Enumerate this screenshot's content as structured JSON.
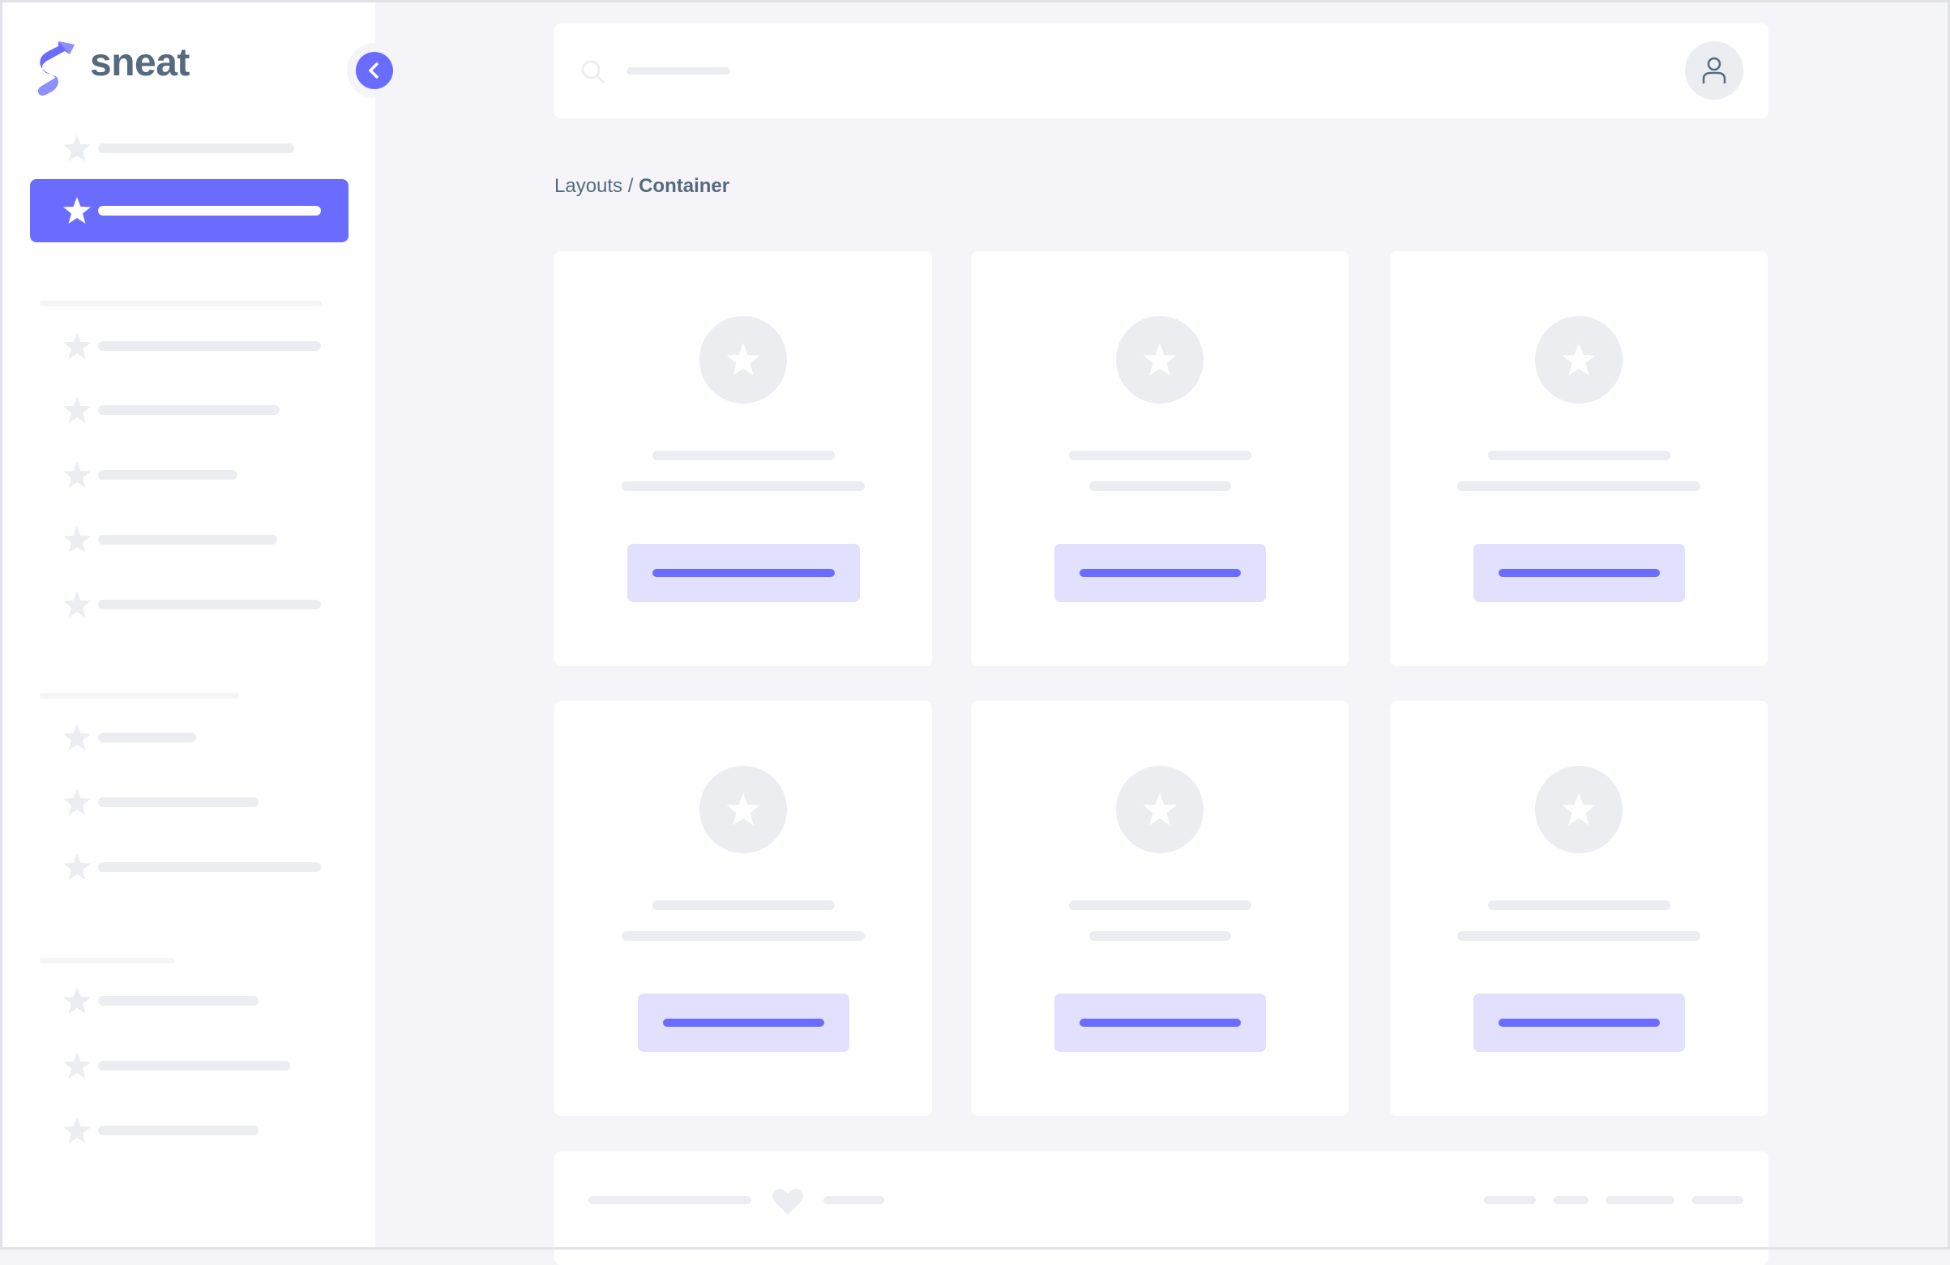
{
  "app": {
    "logo_text": "sneat"
  },
  "sidebar": {
    "collapse_icon": "chevron-left-icon",
    "item_icon": "star-icon",
    "active_index": 1
  },
  "breadcrumb": {
    "parent": "Layouts",
    "separator": " / ",
    "current": "Container"
  },
  "topbar": {
    "search_icon": "search-icon",
    "user_icon": "user-icon"
  },
  "colors": {
    "primary": "#696cff",
    "primary_light": "#e1e1ff",
    "text": "#566a7f",
    "background": "#f5f5f9",
    "skeleton": "#ebedf1"
  },
  "footer": {
    "icon": "heart-icon"
  }
}
